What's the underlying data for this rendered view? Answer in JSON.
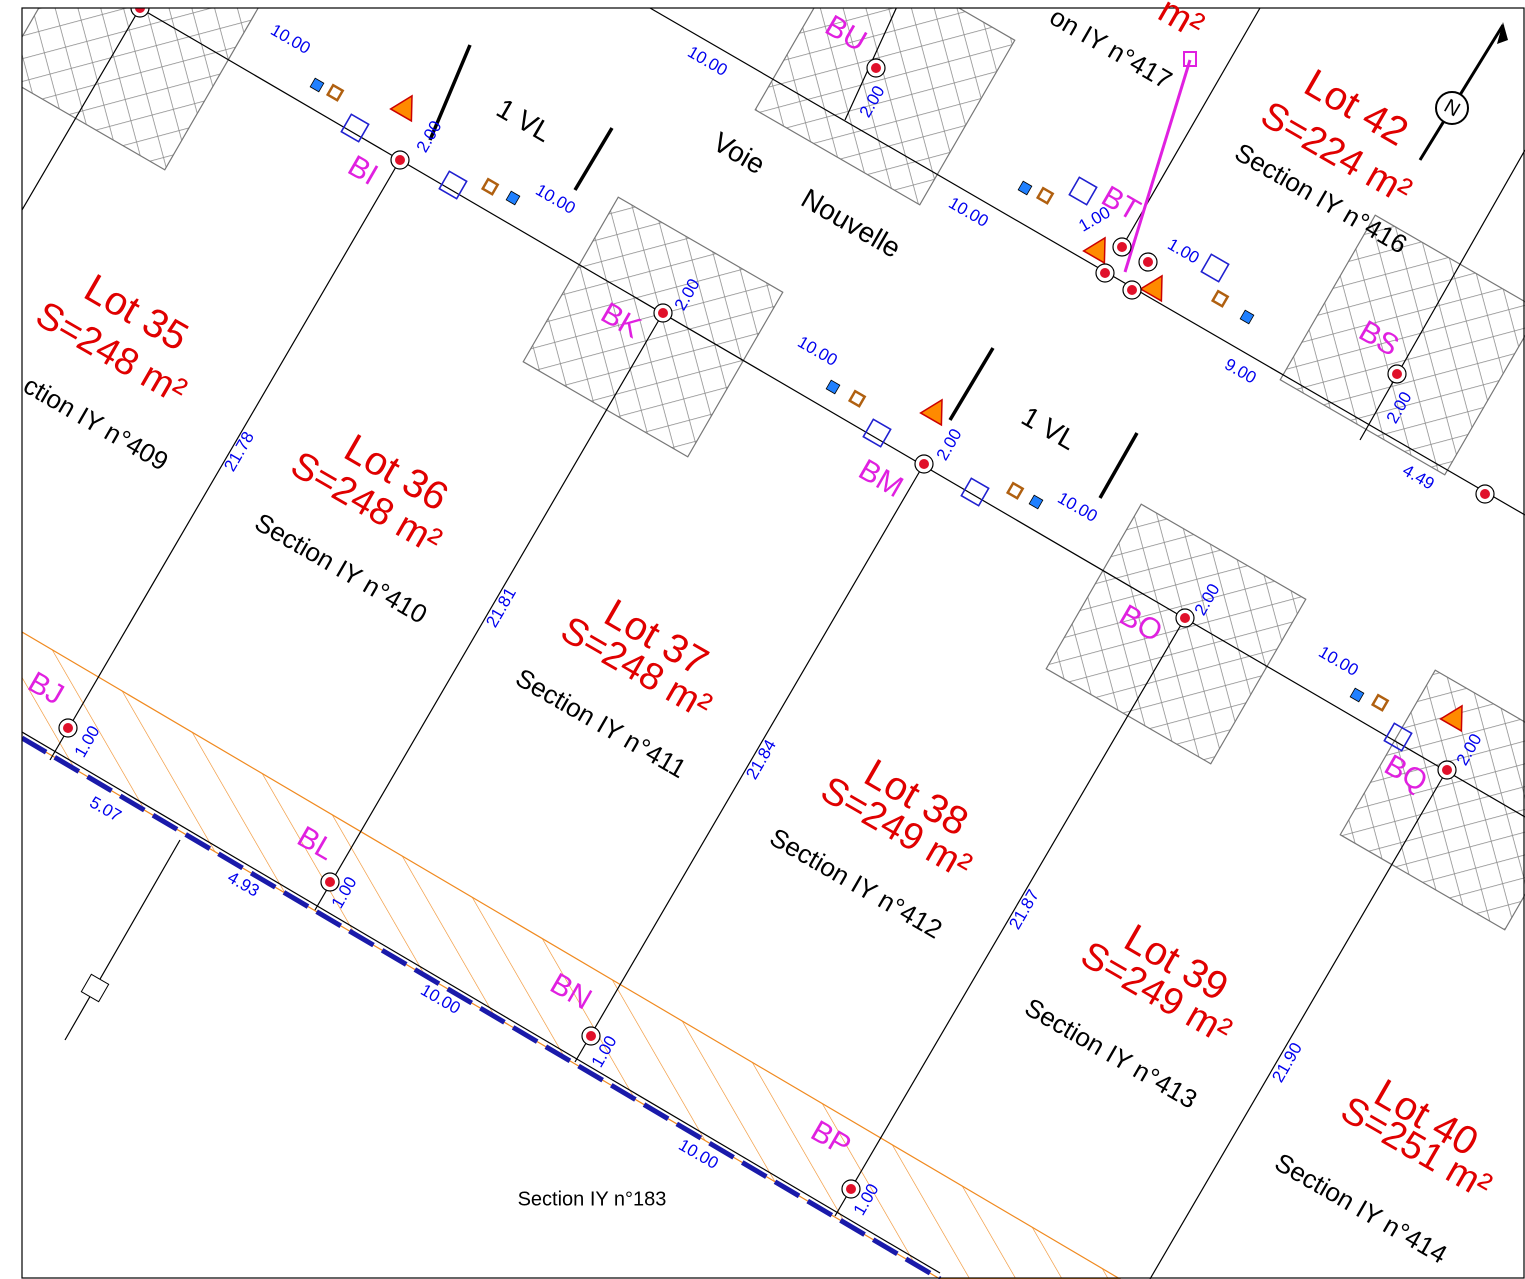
{
  "lots": [
    {
      "name": "Lot 35",
      "area": "S=248 m²",
      "section": "ction IY n°409"
    },
    {
      "name": "Lot 36",
      "area": "S=248 m²",
      "section": "Section IY n°410"
    },
    {
      "name": "Lot 37",
      "area": "S=248 m²",
      "section": "Section IY n°411"
    },
    {
      "name": "Lot 38",
      "area": "S=249 m²",
      "section": "Section IY n°412"
    },
    {
      "name": "Lot 39",
      "area": "S=249 m²",
      "section": "Section IY n°413"
    },
    {
      "name": "Lot 40",
      "area": "S=251 m²",
      "section": "Section IY n°414"
    },
    {
      "name": "Lot 42",
      "area": "S=224 m²",
      "section": "Section IY n°416"
    }
  ],
  "fragments": [
    "m²",
    "on IY n°417"
  ],
  "points": [
    "BI",
    "BK",
    "BM",
    "BO",
    "BQ",
    "BJ",
    "BL",
    "BN",
    "BP",
    "BU",
    "BT",
    "BS"
  ],
  "dimensions": [
    "10.00",
    "10.00",
    "10.00",
    "10.00",
    "10.00",
    "10.00",
    "10.00",
    "9.00",
    "4.49",
    "1.00",
    "1.00",
    "2.00",
    "2.00",
    "2.00",
    "2.00",
    "2.00",
    "2.00",
    "2.00",
    "1.00",
    "1.00",
    "1.00",
    "1.00",
    "21.78",
    "21.81",
    "21.84",
    "21.87",
    "21.90",
    "5.07",
    "4.93",
    "10.00",
    "10.00"
  ],
  "road": {
    "width_labels": [
      "1 VL",
      "1 VL"
    ],
    "name": [
      "Voie",
      "Nouvelle"
    ]
  },
  "parcel": "Section IY n°183",
  "north": "N"
}
